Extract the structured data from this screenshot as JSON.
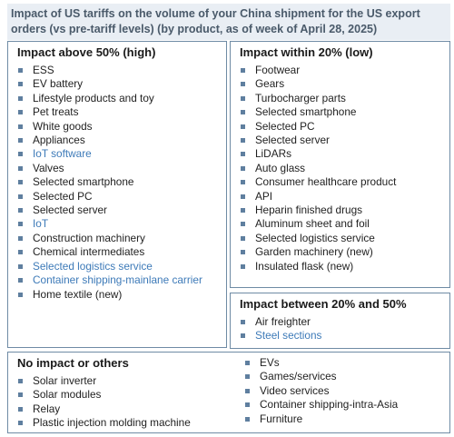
{
  "title": "Impact of US tariffs on the volume of your China shipment for the US export orders (vs pre-tariff levels) (by product, as of week of April 28, 2025)",
  "colors": {
    "bullet": "#5f7f9f",
    "highlight_text": "#3d7ab8",
    "border": "#6f8ba5",
    "title_text": "#4a5a6a"
  },
  "panels": {
    "high": {
      "title": "Impact above 50% (high)",
      "items": [
        {
          "label": "ESS",
          "highlight": false
        },
        {
          "label": "EV battery",
          "highlight": false
        },
        {
          "label": "Lifestyle products and toy",
          "highlight": false
        },
        {
          "label": "Pet treats",
          "highlight": false
        },
        {
          "label": "White goods",
          "highlight": false
        },
        {
          "label": "Appliances",
          "highlight": false
        },
        {
          "label": "IoT software",
          "highlight": true
        },
        {
          "label": "Valves",
          "highlight": false
        },
        {
          "label": "Selected smartphone",
          "highlight": false
        },
        {
          "label": "Selected PC",
          "highlight": false
        },
        {
          "label": "Selected server",
          "highlight": false
        },
        {
          "label": "IoT",
          "highlight": true
        },
        {
          "label": "Construction machinery",
          "highlight": false
        },
        {
          "label": "Chemical intermediates",
          "highlight": false
        },
        {
          "label": "Selected logistics service",
          "highlight": true
        },
        {
          "label": "Container shipping-mainlane carrier",
          "highlight": true
        },
        {
          "label": "Home textile (new)",
          "highlight": false
        }
      ]
    },
    "low": {
      "title": "Impact within 20% (low)",
      "items": [
        {
          "label": "Footwear",
          "highlight": false
        },
        {
          "label": "Gears",
          "highlight": false
        },
        {
          "label": "Turbocharger parts",
          "highlight": false
        },
        {
          "label": "Selected smartphone",
          "highlight": false
        },
        {
          "label": "Selected PC",
          "highlight": false
        },
        {
          "label": "Selected server",
          "highlight": false
        },
        {
          "label": "LiDARs",
          "highlight": false
        },
        {
          "label": "Auto glass",
          "highlight": false
        },
        {
          "label": "Consumer healthcare product",
          "highlight": false
        },
        {
          "label": "API",
          "highlight": false
        },
        {
          "label": "Heparin finished drugs",
          "highlight": false
        },
        {
          "label": "Aluminum sheet and foil",
          "highlight": false
        },
        {
          "label": "Selected logistics service",
          "highlight": false
        },
        {
          "label": "Garden machinery (new)",
          "highlight": false
        },
        {
          "label": "Insulated flask (new)",
          "highlight": false
        }
      ]
    },
    "mid": {
      "title": "Impact between 20% and 50%",
      "items": [
        {
          "label": "Air freighter",
          "highlight": false
        },
        {
          "label": "Steel sections",
          "highlight": true
        }
      ]
    },
    "none": {
      "title": "No impact or others",
      "items_left": [
        {
          "label": "Solar inverter",
          "highlight": false
        },
        {
          "label": "Solar modules",
          "highlight": false
        },
        {
          "label": "Relay",
          "highlight": false
        },
        {
          "label": "Plastic injection molding machine",
          "highlight": false
        }
      ],
      "items_right": [
        {
          "label": "EVs",
          "highlight": false
        },
        {
          "label": "Games/services",
          "highlight": false
        },
        {
          "label": "Video services",
          "highlight": false
        },
        {
          "label": "Container shipping-intra-Asia",
          "highlight": false
        },
        {
          "label": "Furniture",
          "highlight": false
        }
      ]
    }
  }
}
